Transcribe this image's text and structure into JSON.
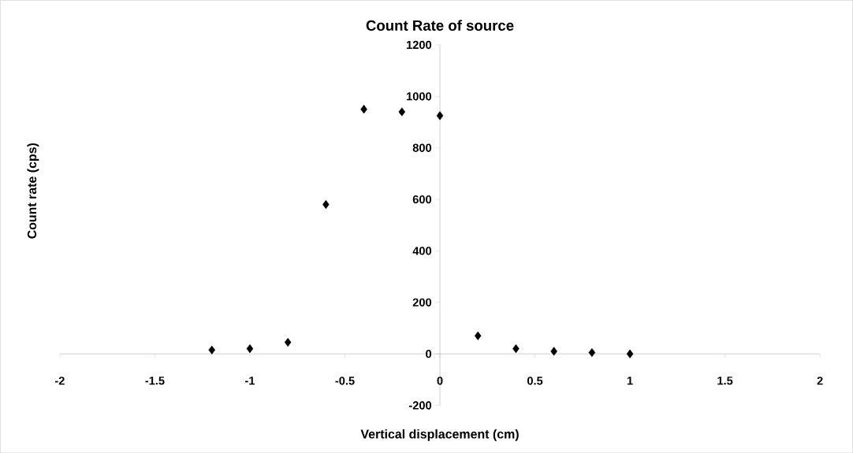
{
  "chart_data": {
    "type": "scatter",
    "title": "Count Rate of source",
    "xlabel": "Vertical displacement (cm)",
    "ylabel": "Count rate (cps)",
    "x": [
      -1.2,
      -1.0,
      -0.8,
      -0.6,
      -0.4,
      -0.2,
      0,
      0.2,
      0.4,
      0.6,
      0.8,
      1.0
    ],
    "values": [
      15,
      20,
      45,
      580,
      950,
      940,
      925,
      70,
      20,
      10,
      5,
      0
    ],
    "color": "#000000",
    "marker": "diamond",
    "xlim": [
      -2,
      2
    ],
    "xticks": [
      -2,
      -1.5,
      -1,
      -0.5,
      0,
      0.5,
      1,
      1.5,
      2
    ],
    "ylim": [
      -200,
      1200
    ],
    "yticks": [
      -200,
      0,
      200,
      400,
      600,
      800,
      1000,
      1200
    ]
  }
}
